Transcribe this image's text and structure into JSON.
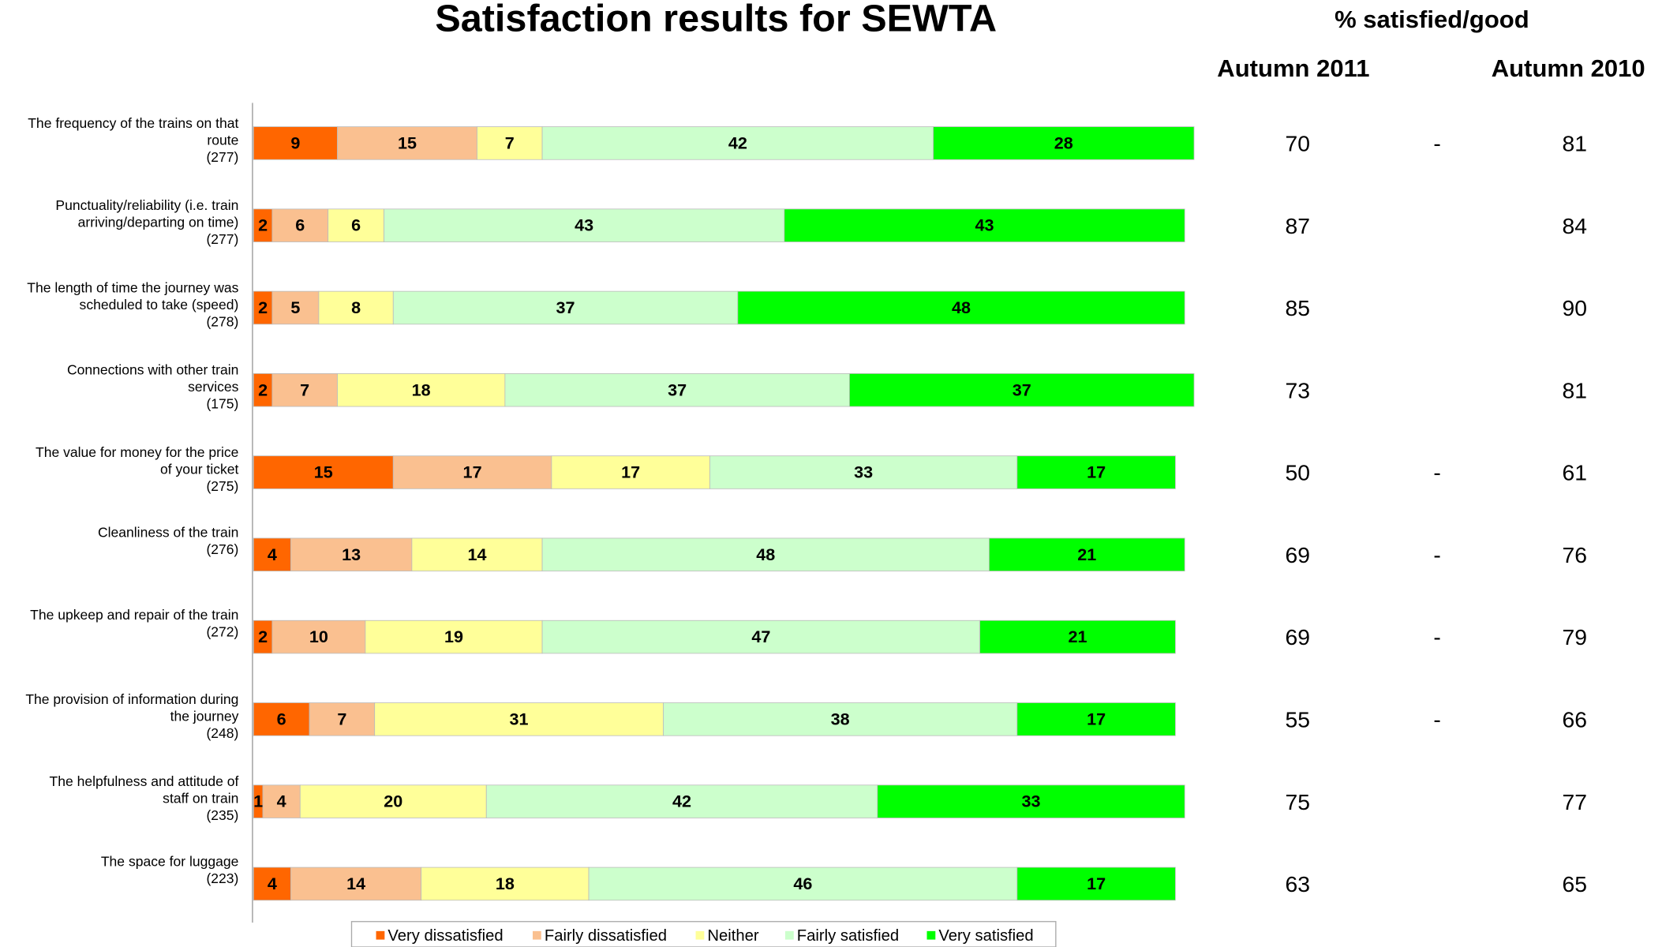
{
  "chart_data": {
    "type": "bar",
    "orientation": "horizontal",
    "stacked": true,
    "title": "Satisfaction results for SEWTA",
    "categories": [
      [
        "The frequency of the trains on that",
        "route",
        "(277)"
      ],
      [
        "Punctuality/reliability (i.e. train",
        "arriving/departing on time)",
        "(277)"
      ],
      [
        "The length of time the journey was",
        "scheduled to take (speed)",
        "(278)"
      ],
      [
        "Connections with other train",
        "services",
        "(175)"
      ],
      [
        "The value for money for the price",
        "of your ticket",
        "(275)"
      ],
      [
        "Cleanliness of the train",
        "(276)"
      ],
      [
        "The upkeep and repair of the train",
        "(272)"
      ],
      [
        "The provision of information during",
        "the journey",
        "(248)"
      ],
      [
        "The helpfulness and attitude of",
        "staff on train",
        "(235)"
      ],
      [
        "The space for luggage",
        "(223)"
      ]
    ],
    "series": [
      {
        "name": "Very dissatisfied",
        "color": "#ff6600",
        "values": [
          9,
          2,
          2,
          2,
          15,
          4,
          2,
          6,
          1,
          4
        ]
      },
      {
        "name": "Fairly dissatisfied",
        "color": "#fac090",
        "values": [
          15,
          6,
          5,
          7,
          17,
          13,
          10,
          7,
          4,
          14
        ]
      },
      {
        "name": "Neither",
        "color": "#ffff99",
        "values": [
          7,
          6,
          8,
          18,
          17,
          14,
          19,
          31,
          20,
          18
        ]
      },
      {
        "name": "Fairly satisfied",
        "color": "#ccffcc",
        "values": [
          42,
          43,
          37,
          37,
          33,
          48,
          47,
          38,
          42,
          46
        ]
      },
      {
        "name": "Very satisfied",
        "color": "#00ff00",
        "values": [
          28,
          43,
          48,
          37,
          17,
          21,
          21,
          17,
          33,
          17
        ]
      }
    ],
    "xlim": [
      0,
      100
    ],
    "legend": "bottom",
    "comparison": {
      "title": "% satisfied/good",
      "columns": [
        "Autumn 2011",
        "Autumn 2010"
      ],
      "autumn_2011": [
        70,
        87,
        85,
        73,
        50,
        69,
        69,
        55,
        75,
        63
      ],
      "change": [
        "-",
        null,
        null,
        null,
        "-",
        "-",
        "-",
        "-",
        null,
        null
      ],
      "autumn_2010": [
        81,
        84,
        90,
        81,
        61,
        76,
        79,
        66,
        77,
        65
      ]
    }
  }
}
